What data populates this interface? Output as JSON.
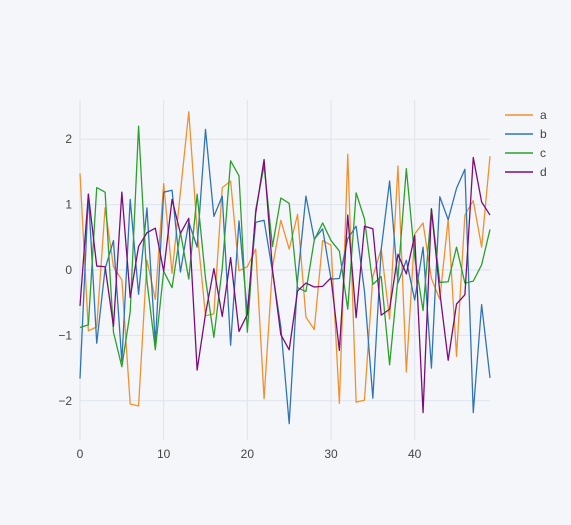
{
  "chart_data": {
    "type": "line",
    "title": "",
    "xlabel": "",
    "ylabel": "",
    "xlim": [
      0,
      49
    ],
    "ylim": [
      -2.6,
      2.6
    ],
    "x_ticks": [
      0,
      10,
      20,
      30,
      40
    ],
    "y_ticks": [
      -2,
      -1,
      0,
      1,
      2
    ],
    "x_tick_labels": [
      "0",
      "10",
      "20",
      "30",
      "40"
    ],
    "y_tick_labels": [
      "−2",
      "−1",
      "0",
      "1",
      "2"
    ],
    "grid": true,
    "legend_position": "top-right",
    "x": [
      0,
      1,
      2,
      3,
      4,
      5,
      6,
      7,
      8,
      9,
      10,
      11,
      12,
      13,
      14,
      15,
      16,
      17,
      18,
      19,
      20,
      21,
      22,
      23,
      24,
      25,
      26,
      27,
      28,
      29,
      30,
      31,
      32,
      33,
      34,
      35,
      36,
      37,
      38,
      39,
      40,
      41,
      42,
      43,
      44,
      45,
      46,
      47,
      48,
      49
    ],
    "series": [
      {
        "name": "a",
        "color": "#f0912f",
        "values": [
          1.48,
          -0.93,
          -0.87,
          0.95,
          0.05,
          -0.15,
          -2.05,
          -2.08,
          0.15,
          -0.45,
          1.32,
          -0.05,
          1.19,
          2.42,
          0.6,
          -0.7,
          -0.67,
          1.26,
          1.36,
          -0.01,
          0.05,
          0.32,
          -1.97,
          0.04,
          0.76,
          0.32,
          0.85,
          -0.72,
          -0.91,
          0.45,
          0.38,
          -2.04,
          1.77,
          -2.02,
          -1.99,
          -0.1,
          0.32,
          -0.75,
          1.59,
          -1.56,
          0.55,
          0.72,
          -0.13,
          -0.45,
          0.78,
          -1.32,
          0.84,
          1.06,
          0.35,
          1.74
        ]
      },
      {
        "name": "b",
        "color": "#2f75b6",
        "values": [
          -1.66,
          1.16,
          -1.12,
          0.02,
          0.45,
          -1.4,
          1.08,
          -0.37,
          0.95,
          -1.12,
          1.19,
          1.22,
          -0.03,
          0.73,
          0.35,
          2.15,
          0.82,
          1.13,
          -1.15,
          0.75,
          -0.65,
          0.73,
          0.76,
          -0.02,
          -0.87,
          -2.35,
          -0.15,
          1.13,
          0.47,
          0.63,
          -0.14,
          -0.13,
          0.48,
          0.67,
          -0.33,
          -1.96,
          0.32,
          1.36,
          -0.2,
          0.15,
          -0.46,
          0.35,
          -1.5,
          1.12,
          0.77,
          1.25,
          1.54,
          -2.18,
          -0.53,
          -1.65
        ]
      },
      {
        "name": "c",
        "color": "#2ca02c",
        "values": [
          -0.88,
          -0.84,
          1.26,
          1.19,
          -0.95,
          -1.48,
          -0.64,
          2.2,
          -0.17,
          -1.22,
          -0.02,
          -0.27,
          0.58,
          -0.14,
          1.16,
          -0.13,
          -1.03,
          0.03,
          1.67,
          1.44,
          -0.95,
          0.92,
          1.6,
          0.36,
          1.1,
          1.02,
          -0.27,
          -0.33,
          0.46,
          0.72,
          0.45,
          0.29,
          -0.6,
          1.18,
          0.78,
          -0.22,
          -0.1,
          -1.45,
          -0.12,
          1.55,
          0.2,
          -0.62,
          0.94,
          -0.19,
          -0.18,
          0.35,
          -0.2,
          -0.17,
          0.08,
          0.62
        ]
      },
      {
        "name": "d",
        "color": "#7b0d7b",
        "values": [
          -0.55,
          1.16,
          0.06,
          0.05,
          -0.86,
          1.19,
          -0.42,
          0.36,
          0.57,
          0.64,
          -0.02,
          1.08,
          0.56,
          0.79,
          -1.53,
          -0.67,
          0.02,
          -0.71,
          0.19,
          -0.94,
          -0.68,
          0.87,
          1.69,
          0.01,
          -0.99,
          -1.22,
          -0.32,
          -0.2,
          -0.26,
          -0.25,
          -0.12,
          -1.23,
          0.84,
          -0.73,
          0.67,
          0.63,
          -0.69,
          -0.6,
          0.24,
          -0.06,
          0.53,
          -2.18,
          0.93,
          -0.34,
          -1.38,
          -0.52,
          -0.38,
          1.72,
          1.04,
          0.84
        ]
      }
    ]
  }
}
